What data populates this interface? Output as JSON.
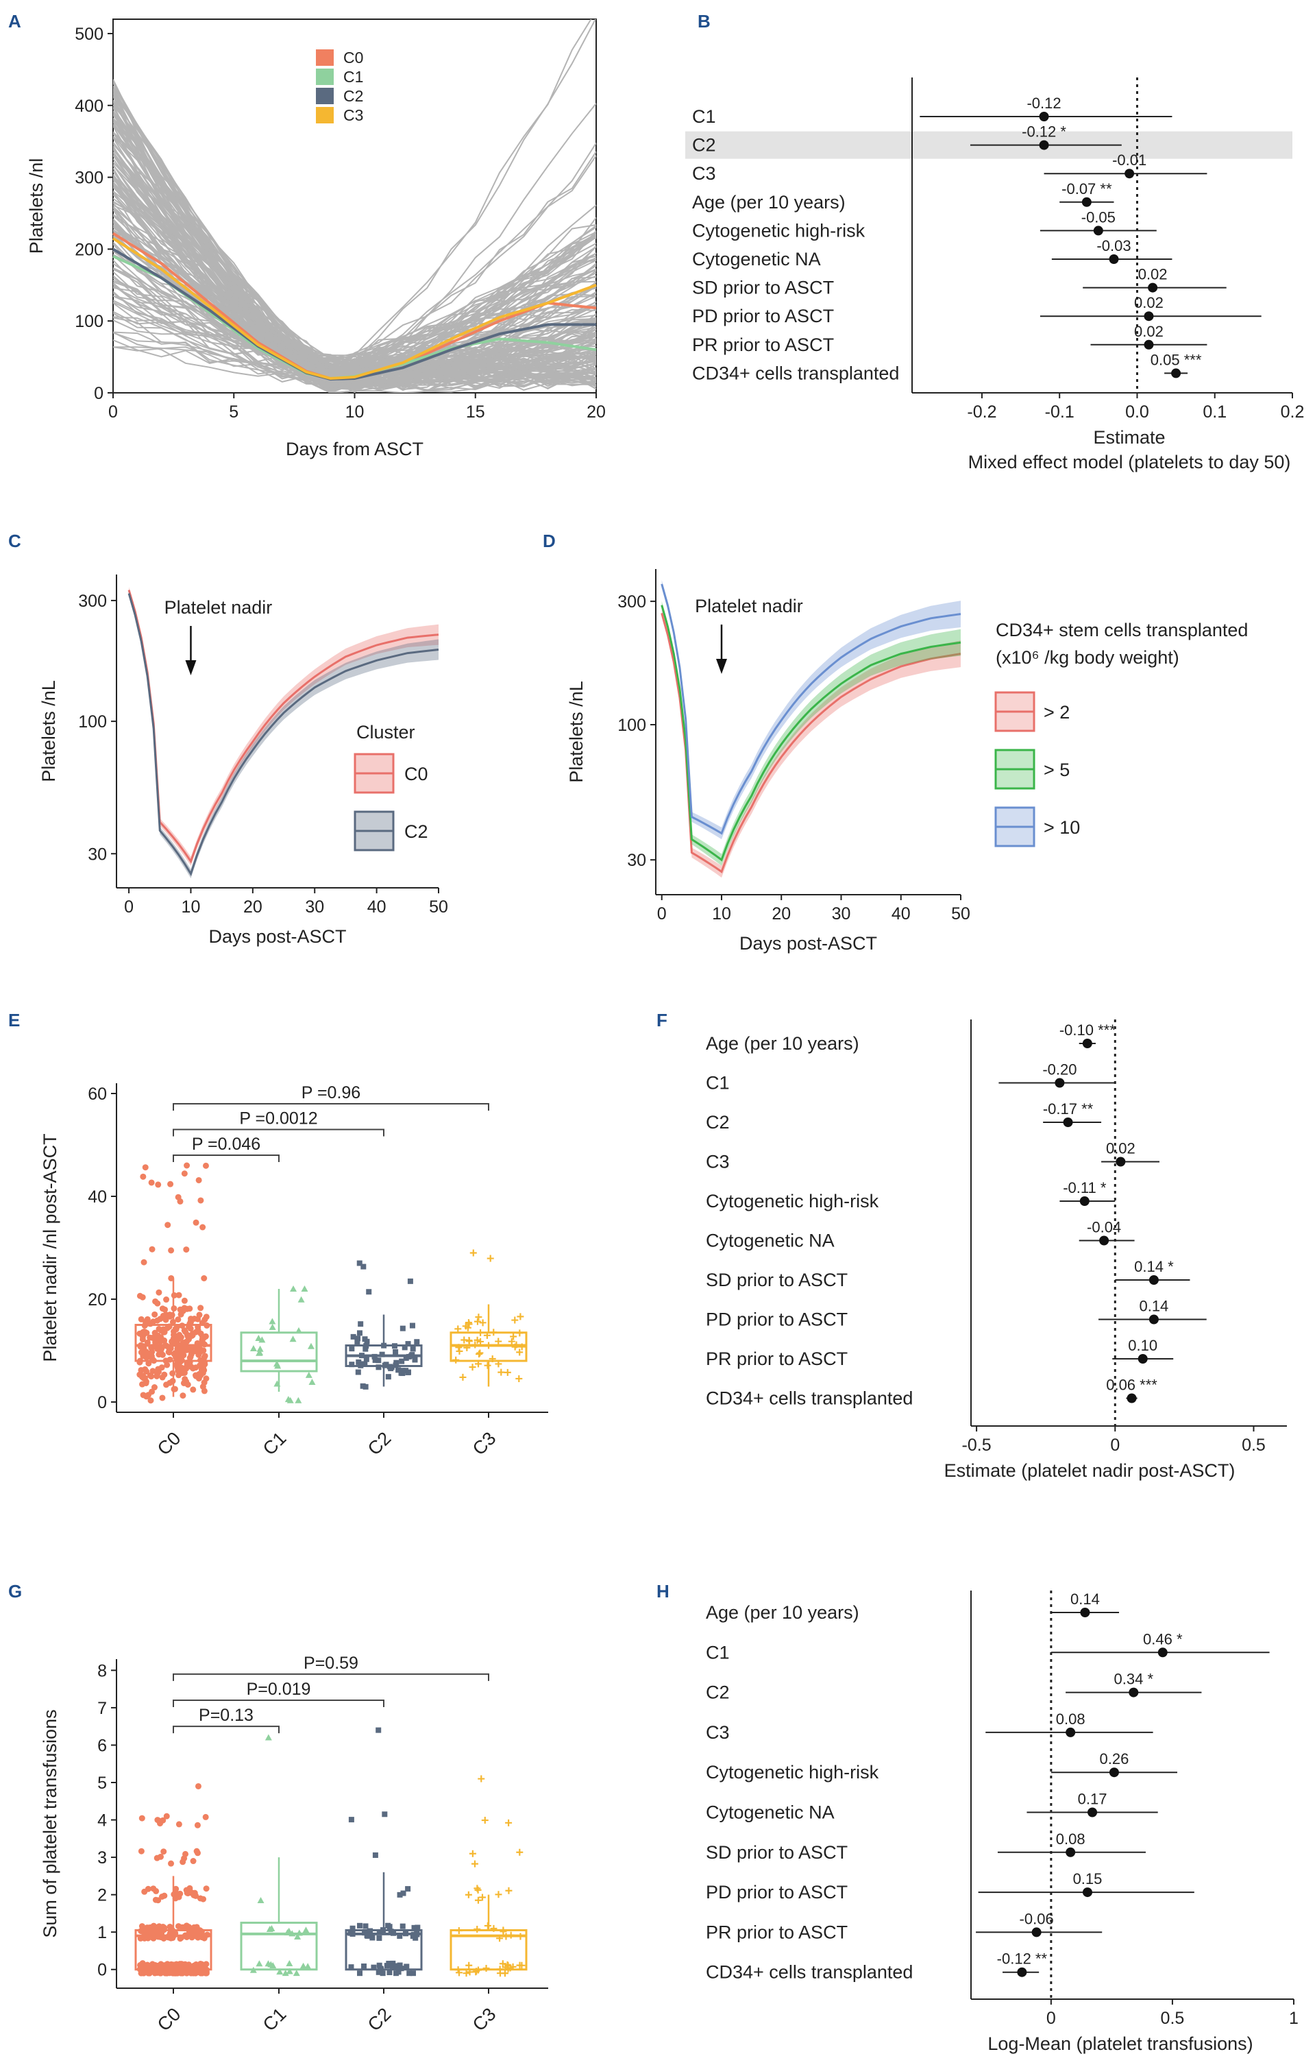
{
  "colors": {
    "C0": "#f08060",
    "C1": "#8fd19e",
    "C2": "#5a6a80",
    "C3": "#f5b731",
    "grey": "#b4b4b4",
    "panel_label": "#1f4e8c",
    "cd_gt2": "#e8706a",
    "cd_gt5": "#3bb54a",
    "cd_gt10": "#6a8fd0"
  },
  "panel_labels": [
    "A",
    "B",
    "C",
    "D",
    "E",
    "F",
    "G",
    "H"
  ],
  "chart_data": [
    {
      "panel": "A",
      "type": "line",
      "xlabel": "Days from ASCT",
      "ylabel": "Platelets /nl",
      "xlim": [
        0,
        20
      ],
      "ylim": [
        0,
        520
      ],
      "xticks": [
        "0",
        "5",
        "10",
        "15",
        "20"
      ],
      "xtick_values": [
        0,
        5,
        10,
        15,
        20
      ],
      "yticks": [
        "0",
        "100",
        "200",
        "300",
        "400",
        "500"
      ],
      "ytick_values": [
        0,
        100,
        200,
        300,
        400,
        500
      ],
      "legend": [
        "C0",
        "C1",
        "C2",
        "C3"
      ],
      "series": [
        {
          "name": "C0",
          "x": [
            0,
            2,
            4,
            6,
            8,
            9,
            10,
            12,
            14,
            16,
            18,
            20
          ],
          "values": [
            222,
            180,
            125,
            70,
            30,
            20,
            22,
            40,
            70,
            100,
            125,
            118
          ]
        },
        {
          "name": "C1",
          "x": [
            0,
            2,
            4,
            6,
            8,
            9,
            10,
            12,
            14,
            16,
            18,
            20
          ],
          "values": [
            190,
            160,
            112,
            62,
            27,
            20,
            23,
            40,
            62,
            75,
            70,
            60
          ]
        },
        {
          "name": "C2",
          "x": [
            0,
            2,
            4,
            6,
            8,
            9,
            10,
            12,
            14,
            16,
            18,
            20
          ],
          "values": [
            200,
            160,
            115,
            65,
            28,
            19,
            20,
            35,
            60,
            82,
            95,
            95
          ]
        },
        {
          "name": "C3",
          "x": [
            0,
            2,
            4,
            6,
            8,
            9,
            10,
            12,
            14,
            16,
            18,
            20
          ],
          "values": [
            215,
            172,
            120,
            67,
            29,
            20,
            22,
            42,
            75,
            105,
            125,
            150
          ]
        }
      ]
    },
    {
      "panel": "B",
      "type": "forest",
      "xlabel": "Estimate",
      "subtitle": "Mixed effect model (platelets to day 50)",
      "xlim": [
        -0.29,
        0.2
      ],
      "xticks": [
        "-0.2",
        "-0.1",
        "0.0",
        "0.1",
        "0.2"
      ],
      "xtick_values": [
        -0.2,
        -0.1,
        0,
        0.1,
        0.2
      ],
      "highlight": "C2",
      "rows": [
        {
          "label": "C1",
          "est": -0.12,
          "lo": -0.28,
          "hi": 0.045,
          "text": "-0.12"
        },
        {
          "label": "C2",
          "est": -0.12,
          "lo": -0.215,
          "hi": -0.02,
          "text": "-0.12 *"
        },
        {
          "label": "C3",
          "est": -0.01,
          "lo": -0.12,
          "hi": 0.09,
          "text": "-0.01"
        },
        {
          "label": "Age (per 10 years)",
          "est": -0.065,
          "lo": -0.1,
          "hi": -0.03,
          "text": "-0.07 **"
        },
        {
          "label": "Cytogenetic high-risk",
          "est": -0.05,
          "lo": -0.125,
          "hi": 0.025,
          "text": "-0.05"
        },
        {
          "label": "Cytogenetic NA",
          "est": -0.03,
          "lo": -0.11,
          "hi": 0.045,
          "text": "-0.03"
        },
        {
          "label": "SD prior to ASCT",
          "est": 0.02,
          "lo": -0.07,
          "hi": 0.115,
          "text": "0.02"
        },
        {
          "label": "PD prior to ASCT",
          "est": 0.015,
          "lo": -0.125,
          "hi": 0.16,
          "text": "0.02"
        },
        {
          "label": "PR prior to ASCT",
          "est": 0.015,
          "lo": -0.06,
          "hi": 0.09,
          "text": "0.02"
        },
        {
          "label": "CD34+ cells transplanted",
          "est": 0.05,
          "lo": 0.035,
          "hi": 0.065,
          "text": "0.05 ***"
        }
      ]
    },
    {
      "panel": "C",
      "type": "line",
      "xlabel": "Days post-ASCT",
      "ylabel": "Platelets /nL",
      "yscale": "log",
      "xlim": [
        -2,
        50
      ],
      "ylim": [
        22,
        380
      ],
      "xticks": [
        "0",
        "10",
        "20",
        "30",
        "40",
        "50"
      ],
      "xtick_values": [
        0,
        10,
        20,
        30,
        40,
        50
      ],
      "yticks": [
        "30",
        "100",
        "300"
      ],
      "ytick_values": [
        30,
        100,
        300
      ],
      "annotation": "Platelet nadir",
      "annotation_x": 10,
      "legend_title": "Cluster",
      "legend": [
        "C0",
        "C2"
      ],
      "series": [
        {
          "name": "C0",
          "x": [
            0,
            5,
            10,
            15,
            20,
            25,
            30,
            35,
            40,
            45,
            50
          ],
          "values": [
            330,
            40,
            28,
            52,
            83,
            118,
            150,
            180,
            200,
            214,
            220
          ]
        },
        {
          "name": "C2",
          "x": [
            0,
            5,
            10,
            15,
            20,
            25,
            30,
            35,
            40,
            45,
            50
          ],
          "values": [
            320,
            37,
            25,
            48,
            77,
            108,
            136,
            158,
            174,
            186,
            192
          ]
        }
      ]
    },
    {
      "panel": "D",
      "type": "line",
      "xlabel": "Days post-ASCT",
      "ylabel": "Platelets /nL",
      "yscale": "log",
      "xlim": [
        -1,
        50
      ],
      "ylim": [
        22,
        400
      ],
      "xticks": [
        "0",
        "10",
        "20",
        "30",
        "40",
        "50"
      ],
      "xtick_values": [
        0,
        10,
        20,
        30,
        40,
        50
      ],
      "yticks": [
        "30",
        "100",
        "300"
      ],
      "ytick_values": [
        30,
        100,
        300
      ],
      "annotation": "Platelet nadir",
      "annotation_x": 10,
      "legend_title": "CD34+ stem cells transplanted",
      "legend_subtitle": "(x10⁶ /kg body weight)",
      "legend": [
        "> 2",
        "> 5",
        "> 10"
      ],
      "series": [
        {
          "name": "> 2",
          "x": [
            0,
            5,
            10,
            15,
            20,
            25,
            30,
            35,
            40,
            45,
            50
          ],
          "values": [
            270,
            32,
            27,
            48,
            75,
            102,
            128,
            150,
            168,
            180,
            188
          ]
        },
        {
          "name": "> 5",
          "x": [
            0,
            5,
            10,
            15,
            20,
            25,
            30,
            35,
            40,
            45,
            50
          ],
          "values": [
            290,
            36,
            30,
            53,
            84,
            115,
            144,
            170,
            188,
            200,
            208
          ]
        },
        {
          "name": "> 10",
          "x": [
            0,
            5,
            10,
            15,
            20,
            25,
            30,
            35,
            40,
            45,
            50
          ],
          "values": [
            350,
            44,
            38,
            66,
            104,
            144,
            182,
            215,
            240,
            258,
            268
          ]
        }
      ]
    },
    {
      "panel": "E",
      "type": "box",
      "ylabel": "Platelet nadir /nl post-ASCT",
      "ylim": [
        -2,
        62
      ],
      "yticks": [
        "0",
        "20",
        "40",
        "60"
      ],
      "ytick_values": [
        0,
        20,
        40,
        60
      ],
      "categories": [
        "C0",
        "C1",
        "C2",
        "C3"
      ],
      "boxes": [
        {
          "name": "C0",
          "q1": 8,
          "median": 11,
          "q3": 15,
          "lo": 1,
          "hi": 24,
          "n": 300,
          "max": 46
        },
        {
          "name": "C1",
          "q1": 6,
          "median": 8,
          "q3": 13.5,
          "lo": 2,
          "hi": 22,
          "n": 22,
          "max": 22
        },
        {
          "name": "C2",
          "q1": 7,
          "median": 9,
          "q3": 11,
          "lo": 3,
          "hi": 17,
          "n": 60,
          "max": 27
        },
        {
          "name": "C3",
          "q1": 8,
          "median": 11,
          "q3": 13.5,
          "lo": 3,
          "hi": 19,
          "n": 45,
          "max": 29
        }
      ],
      "comparisons": [
        {
          "from": "C0",
          "to": "C3",
          "y": 58,
          "label": "P =0.96"
        },
        {
          "from": "C0",
          "to": "C2",
          "y": 53,
          "label": "P =0.0012"
        },
        {
          "from": "C0",
          "to": "C1",
          "y": 48,
          "label": "P =0.046"
        }
      ]
    },
    {
      "panel": "F",
      "type": "forest",
      "xlabel": "Estimate (platelet nadir post-ASCT)",
      "xlim": [
        -0.52,
        0.62
      ],
      "xticks": [
        "-0.5",
        "0",
        "0.5"
      ],
      "xtick_values": [
        -0.5,
        0,
        0.5
      ],
      "rows": [
        {
          "label": "Age (per 10 years)",
          "est": -0.1,
          "lo": -0.13,
          "hi": -0.07,
          "text": "-0.10 ***"
        },
        {
          "label": "C1",
          "est": -0.2,
          "lo": -0.42,
          "hi": 0.0,
          "text": "-0.20"
        },
        {
          "label": "C2",
          "est": -0.17,
          "lo": -0.26,
          "hi": -0.05,
          "text": "-0.17 **"
        },
        {
          "label": "C3",
          "est": 0.02,
          "lo": -0.05,
          "hi": 0.16,
          "text": "0.02"
        },
        {
          "label": "Cytogenetic high-risk",
          "est": -0.11,
          "lo": -0.2,
          "hi": 0.0,
          "text": "-0.11 *"
        },
        {
          "label": "Cytogenetic NA",
          "est": -0.04,
          "lo": -0.13,
          "hi": 0.07,
          "text": "-0.04"
        },
        {
          "label": "SD prior to ASCT",
          "est": 0.14,
          "lo": 0.0,
          "hi": 0.27,
          "text": "0.14 *"
        },
        {
          "label": "PD prior to ASCT",
          "est": 0.14,
          "lo": -0.06,
          "hi": 0.33,
          "text": "0.14"
        },
        {
          "label": "PR prior to ASCT",
          "est": 0.1,
          "lo": -0.01,
          "hi": 0.21,
          "text": "0.10"
        },
        {
          "label": "CD34+ cells transplanted",
          "est": 0.06,
          "lo": 0.04,
          "hi": 0.08,
          "text": "0.06 ***"
        }
      ]
    },
    {
      "panel": "G",
      "type": "box",
      "ylabel": "Sum of platelet transfusions",
      "ylim": [
        -0.5,
        8.3
      ],
      "yticks": [
        "0",
        "1",
        "2",
        "3",
        "4",
        "5",
        "6",
        "7",
        "8"
      ],
      "ytick_values": [
        0,
        1,
        2,
        3,
        4,
        5,
        6,
        7,
        8
      ],
      "categories": [
        "C0",
        "C1",
        "C2",
        "C3"
      ],
      "boxes": [
        {
          "name": "C0",
          "q1": 0,
          "median": 0.9,
          "q3": 1.05,
          "lo": 0,
          "hi": 2.5,
          "n": 300,
          "max": 4.9
        },
        {
          "name": "C1",
          "q1": 0,
          "median": 0.95,
          "q3": 1.25,
          "lo": 0,
          "hi": 3.0,
          "n": 22,
          "max": 6.2
        },
        {
          "name": "C2",
          "q1": 0,
          "median": 0.95,
          "q3": 1.05,
          "lo": 0,
          "hi": 2.6,
          "n": 60,
          "max": 6.4
        },
        {
          "name": "C3",
          "q1": 0,
          "median": 0.9,
          "q3": 1.05,
          "lo": 0,
          "hi": 2.0,
          "n": 45,
          "max": 5.1
        }
      ],
      "comparisons": [
        {
          "from": "C0",
          "to": "C3",
          "y": 7.9,
          "label": "P=0.59"
        },
        {
          "from": "C0",
          "to": "C2",
          "y": 7.2,
          "label": "P=0.019"
        },
        {
          "from": "C0",
          "to": "C1",
          "y": 6.5,
          "label": "P=0.13"
        }
      ]
    },
    {
      "panel": "H",
      "type": "forest",
      "xlabel": "Log-Mean (platelet transfusions)",
      "xlim": [
        -0.33,
        1.0
      ],
      "xticks": [
        "0",
        "0.5",
        "1"
      ],
      "xtick_values": [
        0,
        0.5,
        1
      ],
      "rows": [
        {
          "label": "Age (per 10 years)",
          "est": 0.14,
          "lo": 0.0,
          "hi": 0.28,
          "text": "0.14"
        },
        {
          "label": "C1",
          "est": 0.46,
          "lo": 0.0,
          "hi": 0.9,
          "text": "0.46 *"
        },
        {
          "label": "C2",
          "est": 0.34,
          "lo": 0.06,
          "hi": 0.62,
          "text": "0.34 *"
        },
        {
          "label": "C3",
          "est": 0.08,
          "lo": -0.27,
          "hi": 0.42,
          "text": "0.08"
        },
        {
          "label": "Cytogenetic high-risk",
          "est": 0.26,
          "lo": 0.0,
          "hi": 0.52,
          "text": "0.26"
        },
        {
          "label": "Cytogenetic NA",
          "est": 0.17,
          "lo": -0.1,
          "hi": 0.44,
          "text": "0.17"
        },
        {
          "label": "SD prior to ASCT",
          "est": 0.08,
          "lo": -0.22,
          "hi": 0.39,
          "text": "0.08"
        },
        {
          "label": "PD prior to ASCT",
          "est": 0.15,
          "lo": -0.3,
          "hi": 0.59,
          "text": "0.15"
        },
        {
          "label": "PR prior to ASCT",
          "est": -0.06,
          "lo": -0.31,
          "hi": 0.21,
          "text": "-0.06"
        },
        {
          "label": "CD34+ cells transplanted",
          "est": -0.12,
          "lo": -0.2,
          "hi": -0.05,
          "text": "-0.12 **"
        }
      ]
    }
  ]
}
